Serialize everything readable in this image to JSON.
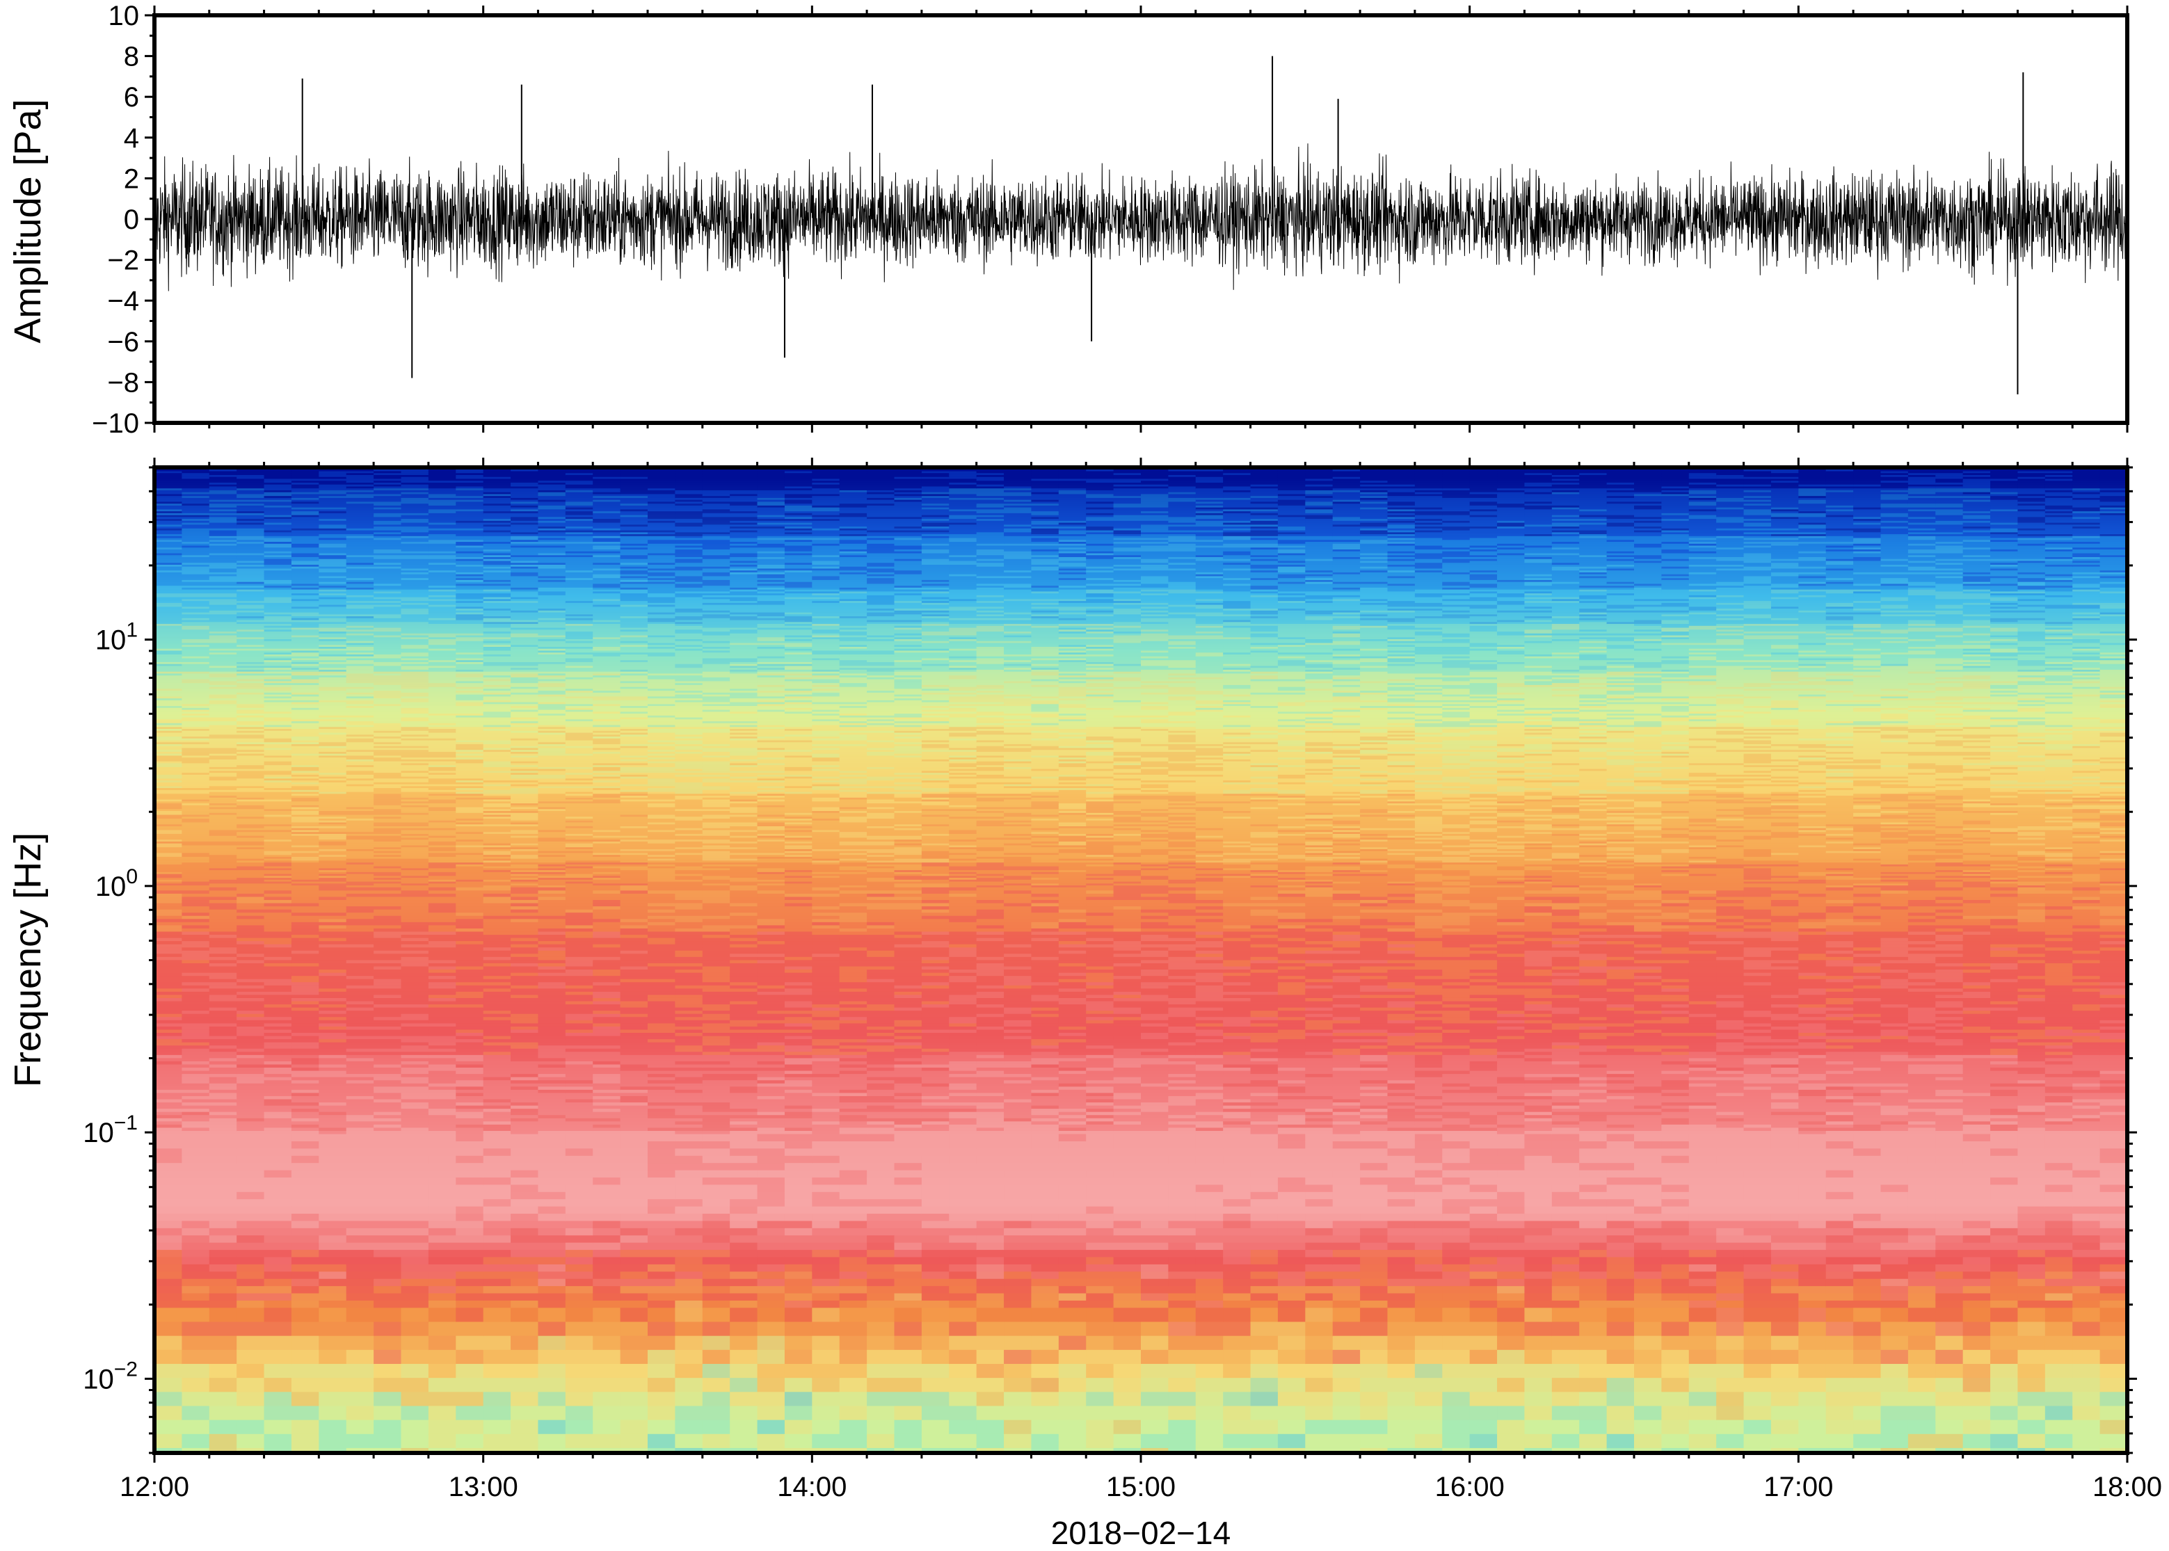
{
  "chart_data": [
    {
      "type": "line",
      "ylabel": "Amplitude [Pa]",
      "ylim": [
        -10,
        10
      ],
      "yticks": [
        10,
        8,
        6,
        4,
        2,
        0,
        -2,
        -4,
        -6,
        -8,
        -10
      ],
      "ytick_labels": [
        "10",
        "8",
        "6",
        "4",
        "2",
        "0",
        "−2",
        "−4",
        "−6",
        "−8",
        "−10"
      ],
      "xlim": [
        "2018-02-14 12:00",
        "2018-02-14 18:00"
      ],
      "grid": false,
      "series": [
        {
          "color": "#000000",
          "envelope": {
            "description_times": [
              "12:00",
              "12:30",
              "13:00",
              "13:30",
              "14:00",
              "14:30",
              "15:00",
              "15:30",
              "16:00",
              "16:30",
              "17:00",
              "17:30",
              "18:00"
            ],
            "typical_abs_amplitude": [
              2.5,
              2.2,
              2.3,
              2.1,
              2.2,
              2.0,
              1.9,
              2.3,
              2.1,
              1.8,
              2.0,
              2.2,
              2.4
            ]
          },
          "spikes": [
            {
              "x": "12:47",
              "y": -7.8
            },
            {
              "x": "12:27",
              "y": 6.9
            },
            {
              "x": "13:07",
              "y": 6.6
            },
            {
              "x": "13:55",
              "y": -6.8
            },
            {
              "x": "14:11",
              "y": 6.6
            },
            {
              "x": "15:24",
              "y": 8.0
            },
            {
              "x": "17:41",
              "y": 7.2
            },
            {
              "x": "17:40",
              "y": -8.6
            },
            {
              "x": "15:36",
              "y": 5.9
            },
            {
              "x": "14:51",
              "y": -6.0
            }
          ]
        }
      ]
    },
    {
      "type": "heatmap",
      "ylabel": "Frequency [Hz]",
      "yscale": "log",
      "ylim": [
        0.005,
        50
      ],
      "yticks": [
        0.01,
        0.1,
        1,
        10
      ],
      "ytick_labels": [
        {
          "base": "10",
          "exp": "−2"
        },
        {
          "base": "10",
          "exp": "−1"
        },
        {
          "base": "10",
          "exp": "0"
        },
        {
          "base": "10",
          "exp": "1"
        }
      ],
      "xlabel": "2018−02−14",
      "xticks": [
        "12:00",
        "13:00",
        "14:00",
        "15:00",
        "16:00",
        "17:00",
        "18:00"
      ],
      "xlim": [
        "12:00",
        "18:00"
      ],
      "colormap": [
        "#00008f",
        "#0a3fd0",
        "#1e90e6",
        "#44c8ec",
        "#7fe6d0",
        "#d6f29a",
        "#f8e07a",
        "#f8b255",
        "#f58a48",
        "#ee5555",
        "#f47a7c",
        "#f8aaaa"
      ],
      "mean_color_by_frequency": [
        {
          "hz": 45,
          "color": "#001a9c"
        },
        {
          "hz": 25,
          "color": "#1a6fde"
        },
        {
          "hz": 15,
          "color": "#3bb0ea"
        },
        {
          "hz": 9,
          "color": "#8fe2c4"
        },
        {
          "hz": 5,
          "color": "#e4ef92"
        },
        {
          "hz": 2.5,
          "color": "#f8cc6a"
        },
        {
          "hz": 1.2,
          "color": "#f59a50"
        },
        {
          "hz": 0.6,
          "color": "#f06a52"
        },
        {
          "hz": 0.25,
          "color": "#ee5a5e"
        },
        {
          "hz": 0.1,
          "color": "#f49494"
        },
        {
          "hz": 0.05,
          "color": "#f6a4a4"
        },
        {
          "hz": 0.03,
          "color": "#ee5c5c"
        },
        {
          "hz": 0.018,
          "color": "#f0843f"
        },
        {
          "hz": 0.011,
          "color": "#f6d070"
        },
        {
          "hz": 0.0065,
          "color": "#c9ef9c"
        }
      ],
      "grid": false,
      "colorbar": false
    }
  ]
}
